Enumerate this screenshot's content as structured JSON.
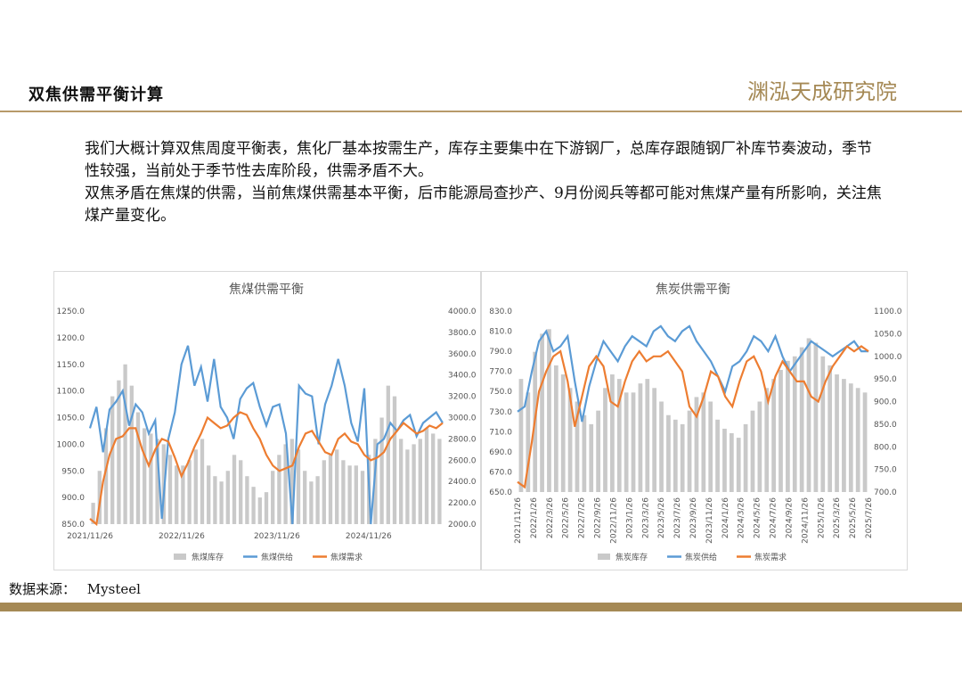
{
  "header": {
    "title": "双焦供需平衡计算",
    "logo_text": "渊泓天成研究院"
  },
  "body": {
    "paragraph1": "我们大概计算双焦周度平衡表，焦化厂基本按需生产，库存主要集中在下游钢厂，总库存跟随钢厂补库节奏波动，季节性较强，当前处于季节性去库阶段，供需矛盾不大。",
    "paragraph2": "双焦矛盾在焦煤的供需，当前焦煤供需基本平衡，后市能源局查抄产、9月份阅兵等都可能对焦煤产量有所影响，关注焦煤产量变化。"
  },
  "source": {
    "label": "数据来源：",
    "value": "Mysteel"
  },
  "colors": {
    "accent": "#a58955",
    "inventory": "#c9c9c9",
    "supply": "#5b9bd5",
    "demand": "#ed7d31"
  },
  "chart_data": [
    {
      "type": "bar",
      "title": "焦煤供需平衡",
      "y_left": {
        "min": 850,
        "max": 1250,
        "ticks": [
          "850.0",
          "900.0",
          "950.0",
          "1000.0",
          "1050.0",
          "1100.0",
          "1150.0",
          "1200.0",
          "1250.0"
        ]
      },
      "y_right": {
        "min": 2000,
        "max": 4000,
        "ticks": [
          "2000.0",
          "2200.0",
          "2400.0",
          "2600.0",
          "2800.0",
          "3000.0",
          "3200.0",
          "3400.0",
          "3600.0",
          "3800.0",
          "4000.0"
        ]
      },
      "x_labels": [
        "2021/11/26",
        "2022/11/26",
        "2023/11/26",
        "2024/11/26"
      ],
      "legend": [
        "焦煤库存",
        "焦煤供给",
        "焦煤需求"
      ],
      "series": [
        {
          "name": "焦煤库存",
          "axis": "right",
          "kind": "bar",
          "values": [
            2200,
            2500,
            2900,
            3200,
            3350,
            3500,
            3300,
            3050,
            2900,
            2850,
            2800,
            2750,
            2650,
            2550,
            2550,
            2600,
            2700,
            2800,
            2550,
            2450,
            2400,
            2500,
            2650,
            2600,
            2450,
            2350,
            2250,
            2300,
            2500,
            2650,
            2750,
            2800,
            2700,
            2500,
            2400,
            2450,
            2600,
            2650,
            2700,
            2600,
            2550,
            2550,
            2500,
            2650,
            2800,
            3000,
            3300,
            3200,
            2800,
            2700,
            2750,
            2800,
            2900,
            2850,
            2800
          ]
        },
        {
          "name": "焦煤供给",
          "axis": "left",
          "kind": "line",
          "values": [
            1030,
            1070,
            985,
            1065,
            1080,
            1100,
            1035,
            1075,
            1060,
            1020,
            1045,
            860,
            1010,
            1060,
            1150,
            1185,
            1110,
            1145,
            1080,
            1160,
            1070,
            1050,
            1010,
            1085,
            1105,
            1115,
            1070,
            1035,
            1070,
            1075,
            1020,
            850,
            1110,
            1095,
            1090,
            1000,
            1075,
            1110,
            1160,
            1110,
            1040,
            1005,
            1105,
            850,
            1000,
            1010,
            1040,
            1025,
            1045,
            1055,
            1015,
            1040,
            1050,
            1060,
            1040
          ]
        },
        {
          "name": "焦煤需求",
          "axis": "left",
          "kind": "line",
          "values": [
            860,
            850,
            930,
            980,
            1010,
            1015,
            1030,
            1030,
            990,
            960,
            990,
            1010,
            1005,
            975,
            940,
            965,
            995,
            1020,
            1050,
            1040,
            1030,
            1035,
            1050,
            1060,
            1055,
            1030,
            1010,
            980,
            960,
            950,
            955,
            960,
            995,
            1020,
            1025,
            1005,
            985,
            980,
            1010,
            1020,
            1005,
            1000,
            980,
            970,
            975,
            985,
            1010,
            1025,
            1040,
            1030,
            1020,
            1025,
            1035,
            1030,
            1040
          ]
        }
      ]
    },
    {
      "type": "bar",
      "title": "焦炭供需平衡",
      "y_left": {
        "min": 650,
        "max": 830,
        "ticks": [
          "650.0",
          "670.0",
          "690.0",
          "710.0",
          "730.0",
          "750.0",
          "770.0",
          "790.0",
          "810.0",
          "830.0"
        ]
      },
      "y_right": {
        "min": 700,
        "max": 1100,
        "ticks": [
          "700.0",
          "750.0",
          "800.0",
          "850.0",
          "900.0",
          "950.0",
          "1000.0",
          "1050.0",
          "1100.0"
        ]
      },
      "x_labels": [
        "2021/11/26",
        "2022/1/26",
        "2022/3/26",
        "2022/5/26",
        "2022/7/26",
        "2022/9/26",
        "2022/11/26",
        "2023/1/26",
        "2023/3/26",
        "2023/5/26",
        "2023/7/26",
        "2023/9/26",
        "2023/11/26",
        "2024/1/26",
        "2024/3/26",
        "2024/5/26",
        "2024/7/26",
        "2024/9/26",
        "2024/11/26",
        "2025/1/26",
        "2025/3/26",
        "2025/5/26",
        "2025/7/26"
      ],
      "legend": [
        "焦炭库存",
        "焦炭供给",
        "焦炭需求"
      ],
      "series": [
        {
          "name": "焦炭库存",
          "axis": "right",
          "kind": "bar",
          "values": [
            950,
            920,
            1010,
            1050,
            1060,
            980,
            960,
            930,
            900,
            870,
            850,
            880,
            930,
            960,
            950,
            920,
            920,
            940,
            950,
            930,
            900,
            870,
            860,
            850,
            880,
            910,
            920,
            900,
            860,
            840,
            830,
            820,
            850,
            880,
            900,
            930,
            950,
            970,
            990,
            1000,
            1020,
            1040,
            1030,
            1000,
            980,
            960,
            950,
            940,
            930,
            920
          ]
        },
        {
          "name": "焦炭供给",
          "axis": "left",
          "kind": "line",
          "values": [
            730,
            735,
            770,
            800,
            810,
            790,
            795,
            805,
            760,
            720,
            755,
            780,
            800,
            790,
            780,
            795,
            805,
            800,
            795,
            810,
            815,
            805,
            800,
            810,
            815,
            800,
            790,
            780,
            765,
            750,
            775,
            780,
            790,
            805,
            800,
            790,
            805,
            785,
            770,
            780,
            790,
            800,
            795,
            790,
            785,
            790,
            795,
            800,
            790,
            790
          ]
        },
        {
          "name": "焦炭需求",
          "axis": "left",
          "kind": "line",
          "values": [
            660,
            655,
            700,
            750,
            770,
            785,
            790,
            760,
            715,
            745,
            775,
            785,
            775,
            740,
            735,
            760,
            780,
            790,
            780,
            785,
            785,
            790,
            780,
            770,
            735,
            725,
            745,
            770,
            765,
            745,
            735,
            760,
            780,
            785,
            770,
            740,
            765,
            780,
            770,
            760,
            760,
            745,
            740,
            760,
            775,
            785,
            795,
            790,
            795,
            790
          ]
        }
      ]
    }
  ]
}
